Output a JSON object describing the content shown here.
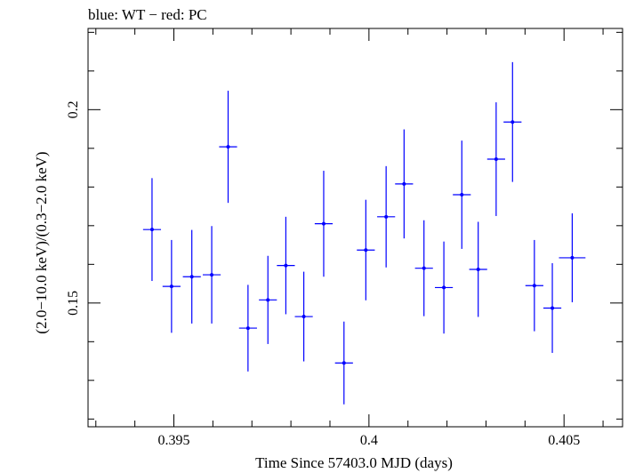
{
  "chart_data": {
    "type": "scatter",
    "title": "blue: WT − red: PC",
    "xlabel": "Time Since 57403.0 MJD (days)",
    "ylabel": "(2.0−10.0 keV)/(0.3−2.0 keV)",
    "xlim": [
      0.3928,
      0.4065
    ],
    "ylim": [
      0.118,
      0.221
    ],
    "x_ticks": [
      {
        "value": 0.395,
        "label": "0.395"
      },
      {
        "value": 0.4,
        "label": "0.4"
      },
      {
        "value": 0.405,
        "label": "0.405"
      }
    ],
    "y_ticks": [
      {
        "value": 0.15,
        "label": "0.15"
      },
      {
        "value": 0.2,
        "label": "0.2"
      }
    ],
    "grid": false,
    "series": [
      {
        "color": "#0000ff",
        "marker": "dot-with-errorbars",
        "points": [
          {
            "x": 0.39444,
            "xerr": 0.00023,
            "y": 0.169,
            "yerr": 0.0133
          },
          {
            "x": 0.39494,
            "xerr": 0.00023,
            "y": 0.1543,
            "yerr": 0.012
          },
          {
            "x": 0.39546,
            "xerr": 0.00023,
            "y": 0.1568,
            "yerr": 0.0121
          },
          {
            "x": 0.39597,
            "xerr": 0.00023,
            "y": 0.1573,
            "yerr": 0.0126
          },
          {
            "x": 0.39639,
            "xerr": 0.00023,
            "y": 0.1904,
            "yerr": 0.0145
          },
          {
            "x": 0.3969,
            "xerr": 0.00023,
            "y": 0.1435,
            "yerr": 0.0112
          },
          {
            "x": 0.39741,
            "xerr": 0.00023,
            "y": 0.1508,
            "yerr": 0.0114
          },
          {
            "x": 0.39787,
            "xerr": 0.00023,
            "y": 0.1597,
            "yerr": 0.0126
          },
          {
            "x": 0.39833,
            "xerr": 0.00023,
            "y": 0.1465,
            "yerr": 0.0116
          },
          {
            "x": 0.39884,
            "xerr": 0.00023,
            "y": 0.1705,
            "yerr": 0.0137
          },
          {
            "x": 0.39936,
            "xerr": 0.00023,
            "y": 0.1345,
            "yerr": 0.0107
          },
          {
            "x": 0.39992,
            "xerr": 0.00023,
            "y": 0.1637,
            "yerr": 0.013
          },
          {
            "x": 0.40044,
            "xerr": 0.00023,
            "y": 0.1723,
            "yerr": 0.0131
          },
          {
            "x": 0.4009,
            "xerr": 0.00023,
            "y": 0.1808,
            "yerr": 0.0141
          },
          {
            "x": 0.40141,
            "xerr": 0.00023,
            "y": 0.159,
            "yerr": 0.0124
          },
          {
            "x": 0.40192,
            "xerr": 0.00023,
            "y": 0.154,
            "yerr": 0.0119
          },
          {
            "x": 0.40238,
            "xerr": 0.00023,
            "y": 0.178,
            "yerr": 0.014
          },
          {
            "x": 0.4028,
            "xerr": 0.00023,
            "y": 0.1587,
            "yerr": 0.0123
          },
          {
            "x": 0.40326,
            "xerr": 0.00023,
            "y": 0.1872,
            "yerr": 0.0147
          },
          {
            "x": 0.40368,
            "xerr": 0.00023,
            "y": 0.1968,
            "yerr": 0.0155
          },
          {
            "x": 0.40424,
            "xerr": 0.00023,
            "y": 0.1545,
            "yerr": 0.0118
          },
          {
            "x": 0.4047,
            "xerr": 0.00023,
            "y": 0.1487,
            "yerr": 0.0116
          },
          {
            "x": 0.40521,
            "xerr": 0.00034,
            "y": 0.1617,
            "yerr": 0.0115
          }
        ]
      }
    ]
  }
}
